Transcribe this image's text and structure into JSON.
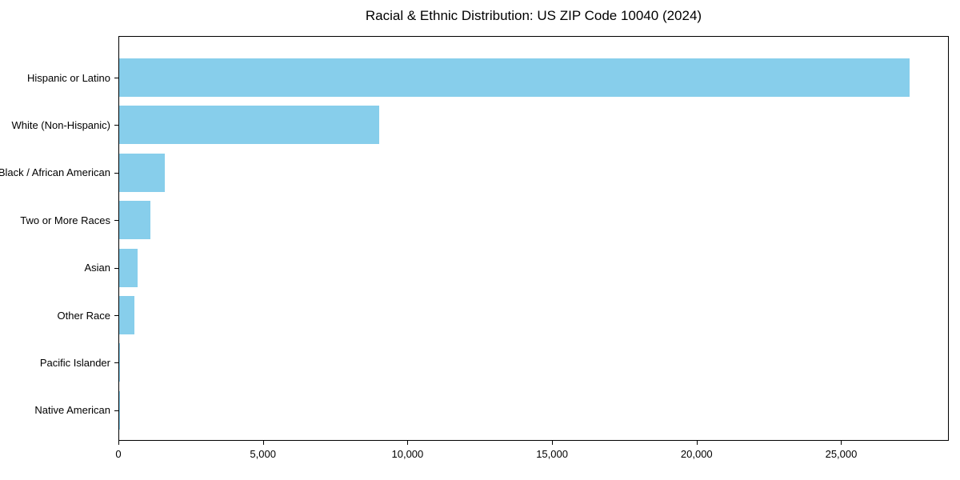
{
  "title": "Racial & Ethnic Distribution: US ZIP Code 10040 (2024)",
  "chart_data": {
    "type": "bar",
    "orientation": "horizontal",
    "title": "Racial & Ethnic Distribution: US ZIP Code 10040 (2024)",
    "categories": [
      "Hispanic or Latino",
      "White (Non-Hispanic)",
      "Black / African American",
      "Two or More Races",
      "Asian",
      "Other Race",
      "Pacific Islander",
      "Native American"
    ],
    "values": [
      27350,
      9000,
      1570,
      1080,
      650,
      530,
      20,
      10
    ],
    "xlabel": "",
    "ylabel": "",
    "xlim": [
      0,
      28722
    ],
    "xticks": [
      0,
      5000,
      10000,
      15000,
      20000,
      25000
    ],
    "xtick_labels": [
      "0",
      "5,000",
      "10,000",
      "15,000",
      "20,000",
      "25,000"
    ],
    "bar_color": "#87CEEB",
    "background_color": "#ffffff",
    "spine_color": "#000000",
    "grid": false,
    "legend": null
  }
}
